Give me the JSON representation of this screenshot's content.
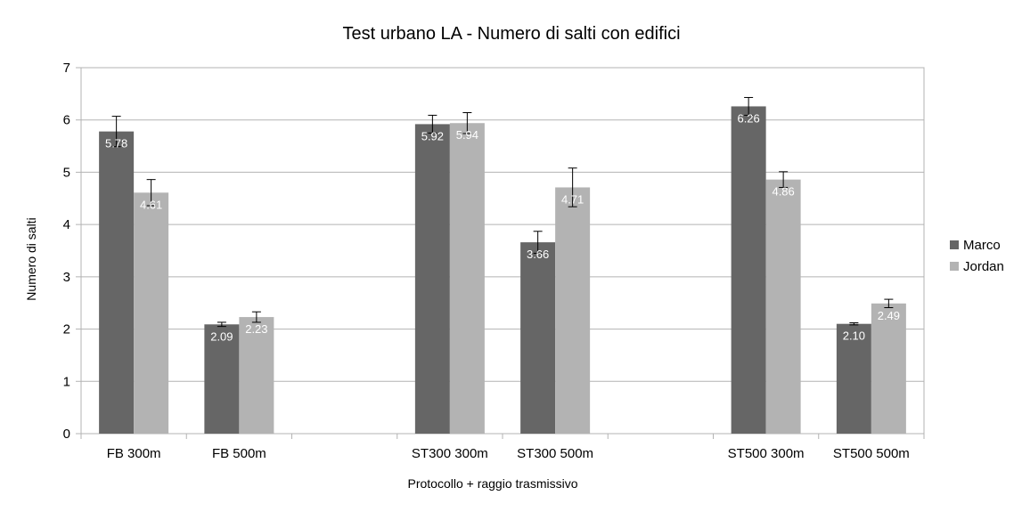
{
  "chart_data": {
    "type": "bar",
    "title": "Test urbano LA - Numero di salti con edifici",
    "xlabel": "Protocollo + raggio trasmissivo",
    "ylabel": "Numero di salti",
    "ylim": [
      0,
      7
    ],
    "yticks": [
      "0",
      "1",
      "2",
      "3",
      "4",
      "5",
      "6",
      "7"
    ],
    "grid": true,
    "legend_position": "right",
    "categories": [
      "FB 300m",
      "FB 500m",
      "",
      "ST300 300m",
      "ST300 500m",
      "",
      "ST500 300m",
      "ST500 500m"
    ],
    "series": [
      {
        "name": "Marco",
        "color": "#666666",
        "values": [
          5.78,
          2.09,
          null,
          5.92,
          3.66,
          null,
          6.26,
          2.1
        ],
        "labels": [
          "5.78",
          "2.09",
          "",
          "5.92",
          "3.66",
          "",
          "6.26",
          "2.10"
        ],
        "error": [
          0.29,
          0.04,
          null,
          0.17,
          0.21,
          null,
          0.17,
          0.02
        ]
      },
      {
        "name": "Jordan",
        "color": "#b3b3b3",
        "values": [
          4.61,
          2.23,
          null,
          5.94,
          4.71,
          null,
          4.86,
          2.49
        ],
        "labels": [
          "4.61",
          "2.23",
          "",
          "5.94",
          "4.71",
          "",
          "4.86",
          "2.49"
        ],
        "error": [
          0.25,
          0.1,
          null,
          0.2,
          0.37,
          null,
          0.15,
          0.08
        ]
      }
    ]
  }
}
